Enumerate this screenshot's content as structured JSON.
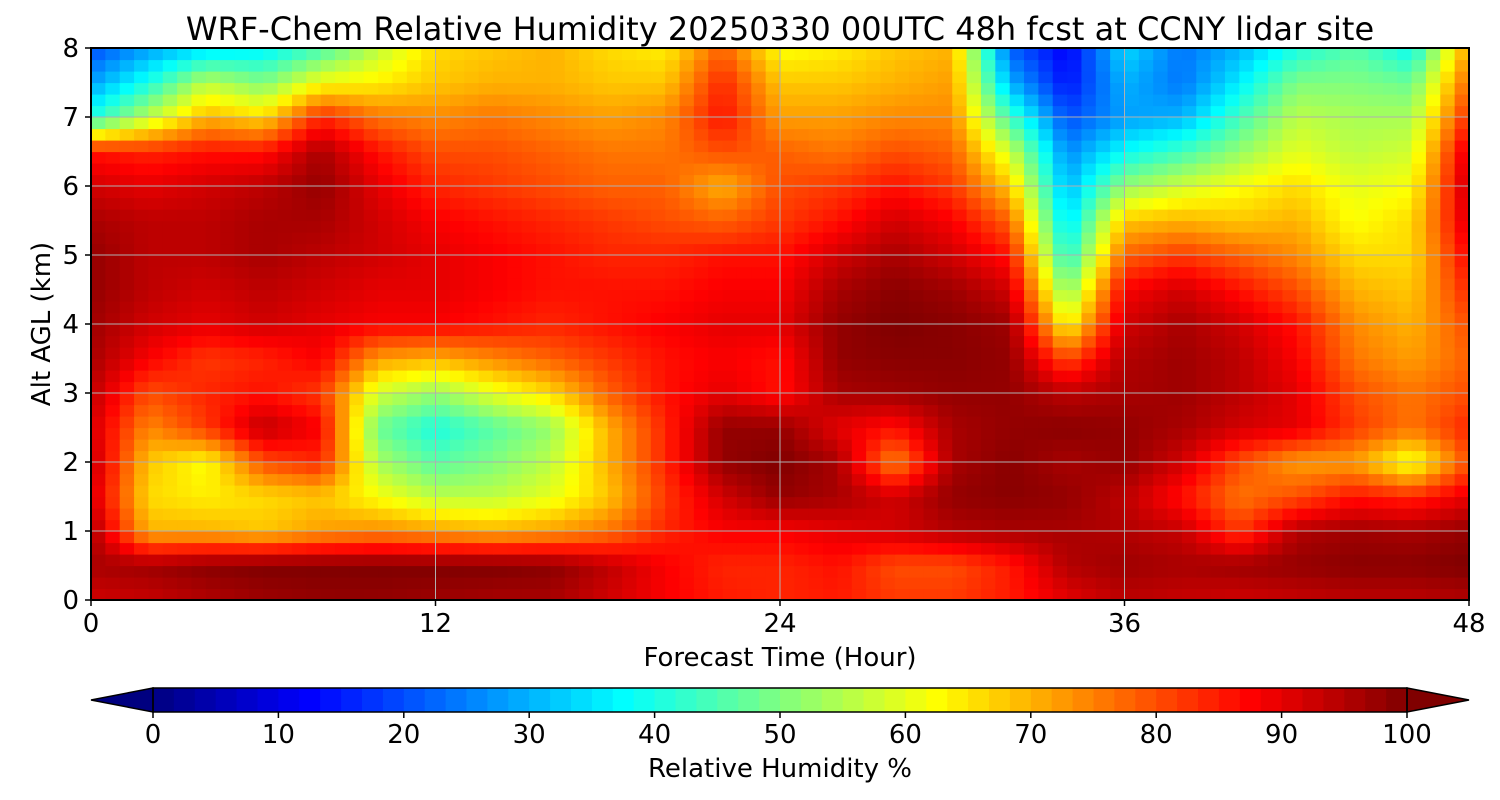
{
  "chart_data": {
    "type": "heatmap",
    "title": "WRF-Chem Relative Humidity 20250330 00UTC 48h fcst at CCNY lidar site",
    "xlabel": "Forecast Time (Hour)",
    "ylabel": "Alt AGL (km)",
    "xlim": [
      0,
      48
    ],
    "ylim": [
      0,
      8
    ],
    "x_ticks": [
      0,
      12,
      24,
      36,
      48
    ],
    "y_ticks": [
      0,
      1,
      2,
      3,
      4,
      5,
      6,
      7,
      8
    ],
    "grid": true,
    "colorbar": {
      "label": "Relative Humidity %",
      "colormap": "jet",
      "range": [
        0,
        100
      ],
      "ticks": [
        0,
        10,
        20,
        30,
        40,
        50,
        60,
        70,
        80,
        90,
        100
      ],
      "extend": "both",
      "orientation": "horizontal"
    },
    "x": [
      0,
      2,
      4,
      6,
      8,
      10,
      12,
      14,
      16,
      18,
      20,
      22,
      24,
      26,
      28,
      30,
      32,
      34,
      36,
      38,
      40,
      42,
      44,
      46,
      48
    ],
    "y": [
      0,
      0.5,
      1,
      1.5,
      2,
      2.5,
      3,
      3.5,
      4,
      4.5,
      5,
      5.5,
      6,
      6.5,
      7,
      7.5,
      8
    ],
    "rh": [
      [
        92,
        93,
        95,
        97,
        98,
        98,
        97,
        96,
        96,
        92,
        88,
        85,
        84,
        85,
        82,
        82,
        85,
        90,
        94,
        93,
        92,
        93,
        94,
        94,
        95
      ],
      [
        96,
        97,
        99,
        100,
        100,
        100,
        100,
        100,
        99,
        94,
        88,
        84,
        84,
        86,
        80,
        80,
        85,
        95,
        97,
        96,
        97,
        98,
        99,
        99,
        100
      ],
      [
        96,
        70,
        70,
        68,
        72,
        74,
        72,
        70,
        72,
        76,
        84,
        88,
        88,
        90,
        92,
        95,
        96,
        96,
        95,
        93,
        82,
        95,
        97,
        96,
        98
      ],
      [
        92,
        66,
        64,
        66,
        68,
        62,
        56,
        56,
        60,
        68,
        82,
        92,
        98,
        96,
        92,
        98,
        99,
        98,
        94,
        86,
        76,
        80,
        86,
        84,
        90
      ],
      [
        94,
        68,
        62,
        80,
        84,
        54,
        46,
        50,
        56,
        70,
        84,
        98,
        100,
        96,
        74,
        96,
        99,
        96,
        98,
        92,
        80,
        72,
        72,
        60,
        80
      ],
      [
        92,
        74,
        82,
        94,
        88,
        48,
        40,
        46,
        52,
        70,
        84,
        98,
        98,
        90,
        86,
        96,
        98,
        99,
        98,
        96,
        92,
        90,
        82,
        76,
        84
      ],
      [
        94,
        80,
        84,
        86,
        82,
        58,
        52,
        60,
        66,
        78,
        86,
        90,
        86,
        96,
        97,
        98,
        98,
        94,
        96,
        97,
        94,
        90,
        80,
        76,
        80
      ],
      [
        96,
        88,
        82,
        84,
        88,
        72,
        70,
        74,
        78,
        82,
        86,
        88,
        86,
        98,
        99,
        99,
        98,
        80,
        95,
        97,
        94,
        88,
        76,
        72,
        78
      ],
      [
        97,
        92,
        90,
        92,
        90,
        88,
        88,
        86,
        84,
        86,
        88,
        90,
        90,
        98,
        100,
        99,
        97,
        62,
        92,
        96,
        92,
        86,
        74,
        70,
        80
      ],
      [
        98,
        94,
        92,
        94,
        92,
        90,
        90,
        88,
        86,
        86,
        86,
        88,
        88,
        96,
        99,
        97,
        92,
        50,
        88,
        92,
        86,
        80,
        70,
        68,
        84
      ],
      [
        98,
        94,
        94,
        96,
        94,
        92,
        90,
        88,
        86,
        84,
        84,
        86,
        86,
        92,
        96,
        92,
        86,
        40,
        78,
        82,
        78,
        74,
        66,
        66,
        88
      ],
      [
        96,
        94,
        94,
        96,
        96,
        92,
        88,
        86,
        84,
        82,
        80,
        78,
        82,
        86,
        92,
        88,
        78,
        34,
        68,
        70,
        68,
        70,
        62,
        66,
        92
      ],
      [
        92,
        90,
        92,
        94,
        98,
        90,
        84,
        82,
        80,
        78,
        78,
        70,
        80,
        82,
        86,
        82,
        68,
        30,
        52,
        58,
        62,
        66,
        60,
        62,
        94
      ],
      [
        86,
        84,
        86,
        86,
        96,
        86,
        80,
        80,
        78,
        76,
        76,
        80,
        78,
        76,
        80,
        78,
        58,
        26,
        38,
        44,
        52,
        60,
        56,
        58,
        92
      ],
      [
        40,
        56,
        70,
        66,
        84,
        76,
        74,
        76,
        74,
        72,
        74,
        86,
        72,
        72,
        74,
        74,
        44,
        20,
        28,
        30,
        44,
        56,
        54,
        54,
        84
      ],
      [
        28,
        40,
        56,
        50,
        62,
        64,
        68,
        70,
        70,
        68,
        68,
        84,
        68,
        68,
        70,
        72,
        30,
        14,
        30,
        24,
        36,
        50,
        50,
        48,
        78
      ],
      [
        20,
        28,
        34,
        36,
        44,
        56,
        66,
        68,
        70,
        66,
        64,
        78,
        62,
        64,
        68,
        70,
        22,
        12,
        34,
        24,
        30,
        40,
        46,
        38,
        72
      ]
    ]
  }
}
